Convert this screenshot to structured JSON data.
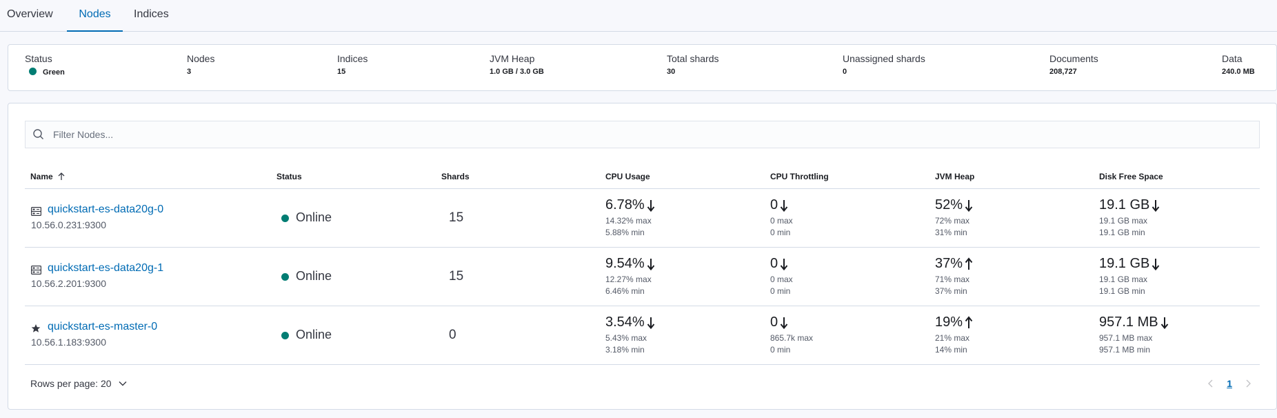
{
  "tabs": [
    "Overview",
    "Nodes",
    "Indices"
  ],
  "summary": {
    "status": {
      "label": "Status",
      "value": "Green"
    },
    "nodes": {
      "label": "Nodes",
      "value": "3"
    },
    "indices": {
      "label": "Indices",
      "value": "15"
    },
    "jvm_heap": {
      "label": "JVM Heap",
      "value": "1.0 GB / 3.0 GB"
    },
    "total_shards": {
      "label": "Total shards",
      "value": "30"
    },
    "unassigned_shards": {
      "label": "Unassigned shards",
      "value": "0"
    },
    "documents": {
      "label": "Documents",
      "value": "208,727"
    },
    "data": {
      "label": "Data",
      "value": "240.0 MB"
    }
  },
  "search": {
    "placeholder": "Filter Nodes..."
  },
  "table": {
    "columns": [
      "Name",
      "Status",
      "Shards",
      "CPU Usage",
      "CPU Throttling",
      "JVM Heap",
      "Disk Free Space"
    ],
    "rows": [
      {
        "name": "quickstart-es-data20g-0",
        "address": "10.56.0.231:9300",
        "icon": "server-icon",
        "status": "Online",
        "shards": "15",
        "cpu": {
          "value": "6.78%",
          "trend": "down",
          "max": "14.32% max",
          "min": "5.88% min"
        },
        "throttle": {
          "value": "0",
          "trend": "down",
          "max": "0 max",
          "min": "0 min"
        },
        "heap": {
          "value": "52%",
          "trend": "down",
          "max": "72% max",
          "min": "31% min"
        },
        "disk": {
          "value": "19.1 GB",
          "trend": "down",
          "max": "19.1 GB max",
          "min": "19.1 GB min"
        }
      },
      {
        "name": "quickstart-es-data20g-1",
        "address": "10.56.2.201:9300",
        "icon": "server-icon",
        "status": "Online",
        "shards": "15",
        "cpu": {
          "value": "9.54%",
          "trend": "down",
          "max": "12.27% max",
          "min": "6.46% min"
        },
        "throttle": {
          "value": "0",
          "trend": "down",
          "max": "0 max",
          "min": "0 min"
        },
        "heap": {
          "value": "37%",
          "trend": "up",
          "max": "71% max",
          "min": "37% min"
        },
        "disk": {
          "value": "19.1 GB",
          "trend": "down",
          "max": "19.1 GB max",
          "min": "19.1 GB min"
        }
      },
      {
        "name": "quickstart-es-master-0",
        "address": "10.56.1.183:9300",
        "icon": "star-icon",
        "status": "Online",
        "shards": "0",
        "cpu": {
          "value": "3.54%",
          "trend": "down",
          "max": "5.43% max",
          "min": "3.18% min"
        },
        "throttle": {
          "value": "0",
          "trend": "down",
          "max": "865.7k max",
          "min": "0 min"
        },
        "heap": {
          "value": "19%",
          "trend": "up",
          "max": "21% max",
          "min": "14% min"
        },
        "disk": {
          "value": "957.1 MB",
          "trend": "down",
          "max": "957.1 MB max",
          "min": "957.1 MB min"
        }
      }
    ]
  },
  "footer": {
    "rows_per_page": "Rows per page: 20",
    "current_page": "1"
  },
  "colors": {
    "accent": "#006bb4",
    "status_green": "#017d73"
  }
}
